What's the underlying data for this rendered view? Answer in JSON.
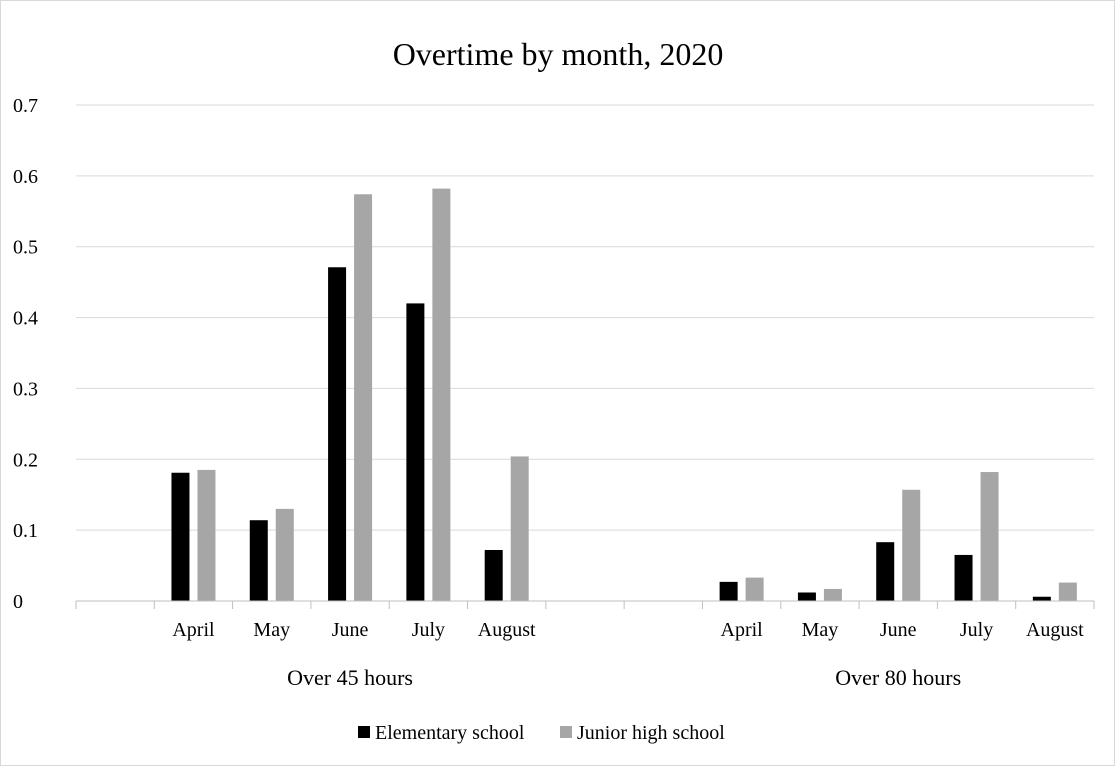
{
  "chart_data": {
    "type": "bar",
    "title": "Overtime by month, 2020",
    "groups": [
      {
        "label": "Over 45 hours",
        "categories": [
          "April",
          "May",
          "June",
          "July",
          "August"
        ],
        "series": [
          {
            "name": "Elementary school",
            "values": [
              0.181,
              0.114,
              0.471,
              0.42,
              0.072
            ]
          },
          {
            "name": "Junior high school",
            "values": [
              0.185,
              0.13,
              0.574,
              0.582,
              0.204
            ]
          }
        ]
      },
      {
        "label": "Over 80 hours",
        "categories": [
          "April",
          "May",
          "June",
          "July",
          "August"
        ],
        "series": [
          {
            "name": "Elementary school",
            "values": [
              0.027,
              0.012,
              0.083,
              0.065,
              0.006
            ]
          },
          {
            "name": "Junior high school",
            "values": [
              0.033,
              0.017,
              0.157,
              0.182,
              0.026
            ]
          }
        ]
      }
    ],
    "ylim": [
      0,
      0.7
    ],
    "yticks": [
      "0",
      "0.1",
      "0.2",
      "0.3",
      "0.4",
      "0.5",
      "0.6",
      "0.7"
    ],
    "grid": true,
    "legend_position": "bottom",
    "legend": [
      {
        "name": "Elementary school",
        "color": "#000000"
      },
      {
        "name": "Junior high school",
        "color": "#a6a6a6"
      }
    ],
    "colors": {
      "gridline": "#d9d9d9",
      "axis": "#bfbfbf"
    }
  }
}
